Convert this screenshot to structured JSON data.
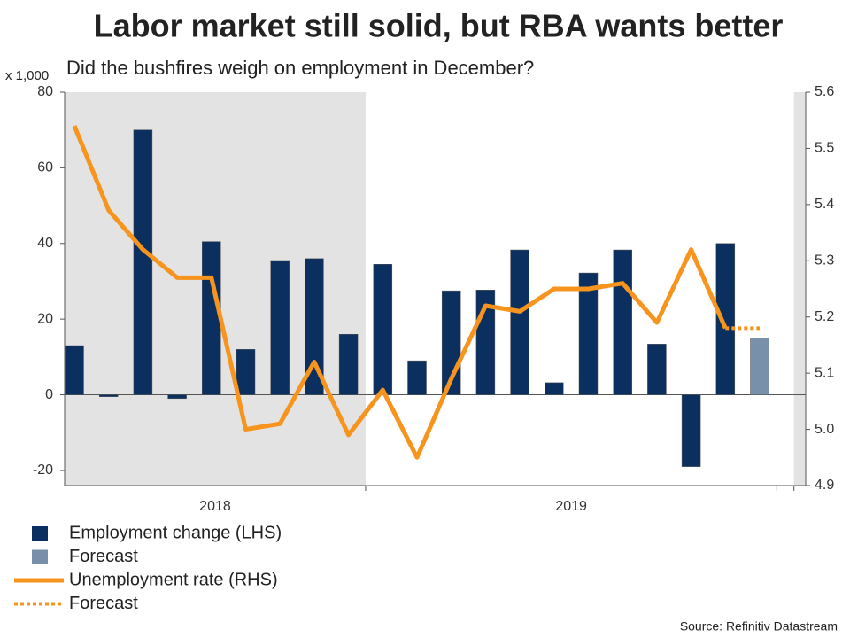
{
  "chart_data": {
    "type": "bar",
    "title": "Labor market still solid, but RBA wants better",
    "subtitle": "Did the bushfires weigh on employment in December?",
    "y_unit_label": "x 1,000",
    "source": "Source: Refinitiv Datastream",
    "categories": [
      null,
      null,
      null,
      null,
      null,
      null,
      null,
      null,
      null,
      null,
      null,
      null,
      null,
      null,
      null,
      null,
      null,
      null,
      null,
      null,
      null
    ],
    "x_groups": [
      {
        "label": "2018",
        "count": 9
      },
      {
        "label": "2019",
        "count": 12
      }
    ],
    "ylim": [
      -24,
      80
    ],
    "yticks": [
      -20,
      0,
      20,
      40,
      60,
      80
    ],
    "y2lim": [
      4.9,
      5.6
    ],
    "y2ticks": [
      4.9,
      {
        "value": 5,
        "label": "5.0"
      },
      5.1,
      5.2,
      5.3,
      5.4,
      5.5,
      5.6
    ],
    "series": [
      {
        "name": "Employment change (LHS)",
        "type": "bar",
        "color": "#0b2f5e",
        "values": [
          13,
          -0.5,
          70,
          -1,
          40.5,
          12,
          35.5,
          36,
          16,
          34.5,
          9,
          27.5,
          27.7,
          38.3,
          3.2,
          32.2,
          38.3,
          13.4,
          -19,
          40,
          null
        ]
      },
      {
        "name": "Forecast",
        "type": "bar",
        "color": "#7890aa",
        "values": [
          null,
          null,
          null,
          null,
          null,
          null,
          null,
          null,
          null,
          null,
          null,
          null,
          null,
          null,
          null,
          null,
          null,
          null,
          null,
          null,
          15
        ]
      },
      {
        "name": "Unemployment rate (RHS)",
        "type": "line",
        "axis": "y2",
        "color": "#f7941d",
        "values": [
          5.54,
          5.39,
          5.32,
          5.27,
          5.27,
          5.0,
          5.01,
          5.12,
          4.99,
          5.07,
          4.95,
          5.09,
          5.22,
          5.21,
          5.25,
          5.25,
          5.26,
          5.19,
          5.32,
          5.18,
          null
        ]
      },
      {
        "name": "Forecast",
        "type": "line",
        "axis": "y2",
        "color": "#f7941d",
        "dashed": true,
        "values": [
          null,
          null,
          null,
          null,
          null,
          null,
          null,
          null,
          null,
          null,
          null,
          null,
          null,
          null,
          null,
          null,
          null,
          null,
          null,
          5.18,
          5.18
        ]
      }
    ]
  }
}
